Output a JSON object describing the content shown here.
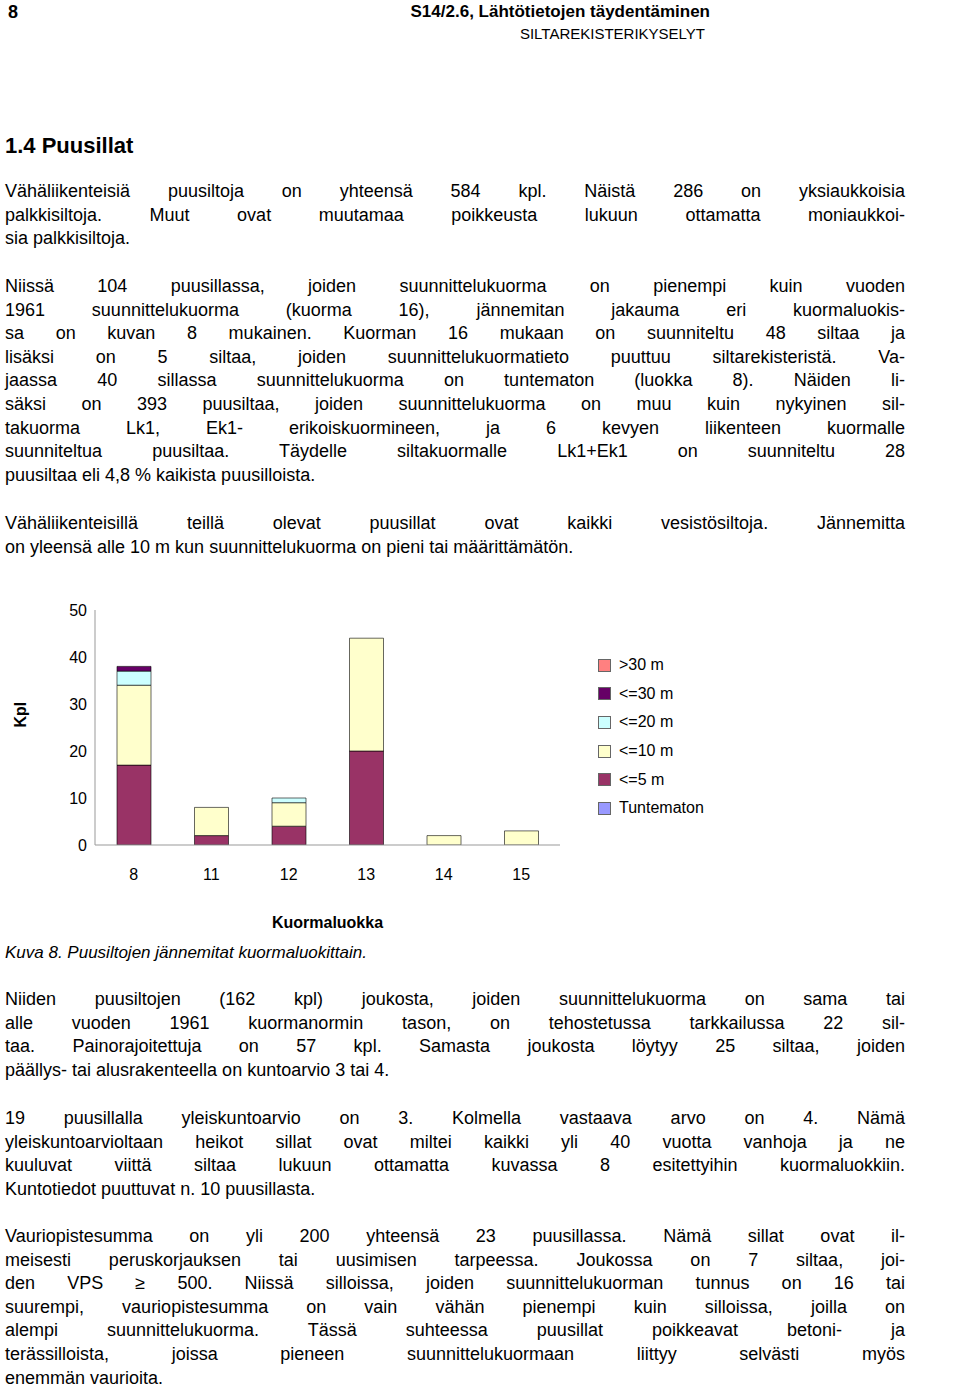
{
  "header": {
    "page": "8",
    "title": "S14/2.6, Lähtötietojen täydentäminen",
    "subtitle": "SILTAREKISTERIKYSELYT"
  },
  "section": "1.4 Puusillat",
  "paragraphs_before": [
    [
      "Vähäliikenteisiä puusiltoja on yhteensä 584 kpl. Näistä 286 on yksiaukkoisia",
      "palkkisiltoja. Muut ovat muutamaa poikkeusta lukuun ottamatta moniaukkoi-",
      "sia palkkisiltoja."
    ],
    [
      "Niissä 104 puusillassa, joiden suunnittelukuorma on pienempi kuin vuoden",
      "1961 suunnittelukuorma (kuorma 16), jännemitan jakauma eri kuormaluokis-",
      "sa on kuvan 8 mukainen. Kuorman 16 mukaan on suunniteltu 48 siltaa ja",
      "lisäksi on 5 siltaa, joiden suunnittelukuormatieto puuttuu siltarekisteristä. Va-",
      "jaassa 40 sillassa suunnittelukuorma on tuntematon (luokka 8). Näiden li-",
      "säksi on 393 puusiltaa, joiden suunnittelukuorma on muu kuin nykyinen sil-",
      "takuorma Lk1, Ek1- erikoiskuormineen, ja 6 kevyen liikenteen kuormalle",
      "suunniteltua puusiltaa. Täydelle siltakuormalle Lk1+Ek1 on suunniteltu 28",
      "puusiltaa eli 4,8 % kaikista puusilloista."
    ],
    [
      "Vähäliikenteisillä teillä olevat puusillat ovat kaikki vesistösiltoja. Jännemitta",
      "on yleensä alle 10 m kun suunnittelukuorma on pieni tai määrittämätön."
    ]
  ],
  "chart_data": {
    "type": "bar",
    "stacked": true,
    "x_label": "Kuormaluokka",
    "y_label": "Kpl",
    "categories": [
      "8",
      "11",
      "12",
      "13",
      "14",
      "15"
    ],
    "series": [
      {
        "name": "Tuntematon",
        "color": "#9999ff",
        "values": [
          0,
          0,
          0,
          0,
          0,
          0
        ]
      },
      {
        "name": "<=5 m",
        "color": "#993366",
        "values": [
          17,
          2,
          4,
          20,
          0,
          0
        ]
      },
      {
        "name": "<=10 m",
        "color": "#ffffcc",
        "values": [
          17,
          6,
          5,
          24,
          2,
          3
        ]
      },
      {
        "name": "<=20 m",
        "color": "#ccffff",
        "values": [
          3,
          0,
          1,
          0,
          0,
          0
        ]
      },
      {
        "name": "<=30 m",
        "color": "#660066",
        "values": [
          1,
          0,
          0,
          0,
          0,
          0
        ]
      },
      {
        "name": ">30 m",
        "color": "#ff8080",
        "values": [
          0,
          0,
          0,
          0,
          0,
          0
        ]
      }
    ],
    "ylim": [
      0,
      50
    ],
    "yticks": [
      0,
      10,
      20,
      30,
      40,
      50
    ],
    "grid": false,
    "legend": "right"
  },
  "caption": "Kuva 8. Puusiltojen jännemitat kuormaluokittain.",
  "paragraphs_after": [
    [
      "Niiden puusiltojen (162 kpl) joukosta, joiden suunnittelukuorma on sama tai",
      "alle vuoden 1961 kuormanormin tason, on tehostetussa tarkkailussa 22 sil-",
      "taa. Painorajoitettuja on 57 kpl. Samasta joukosta löytyy 25 siltaa, joiden",
      "päällys- tai alusrakenteella on kuntoarvio 3 tai 4."
    ],
    [
      "19 puusillalla yleiskuntoarvio on 3. Kolmella vastaava arvo on 4. Nämä",
      "yleiskuntoarvioltaan heikot sillat ovat miltei kaikki yli 40 vuotta vanhoja ja ne",
      "kuuluvat viittä siltaa lukuun ottamatta kuvassa 8 esitettyihin kuormaluokkiin.",
      "Kuntotiedot puuttuvat n. 10 puusillasta."
    ],
    [
      "Vauriopistesumma on yli 200 yhteensä 23 puusillassa. Nämä sillat ovat il-",
      "meisesti peruskorjauksen tai uusimisen tarpeessa. Joukossa on 7 siltaa, joi-",
      "den VPS ≥ 500. Niissä silloissa, joiden suunnittelukuorman tunnus on 16 tai",
      "suurempi, vauriopistesumma on vain vähän pienempi kuin silloissa, joilla on",
      "alempi suunnittelukuorma. Tässä suhteessa puusillat poikkeavat betoni- ja",
      "terässilloista, joissa pieneen suunnittelukuormaan liittyy selvästi myös",
      "enemmän vaurioita."
    ]
  ]
}
